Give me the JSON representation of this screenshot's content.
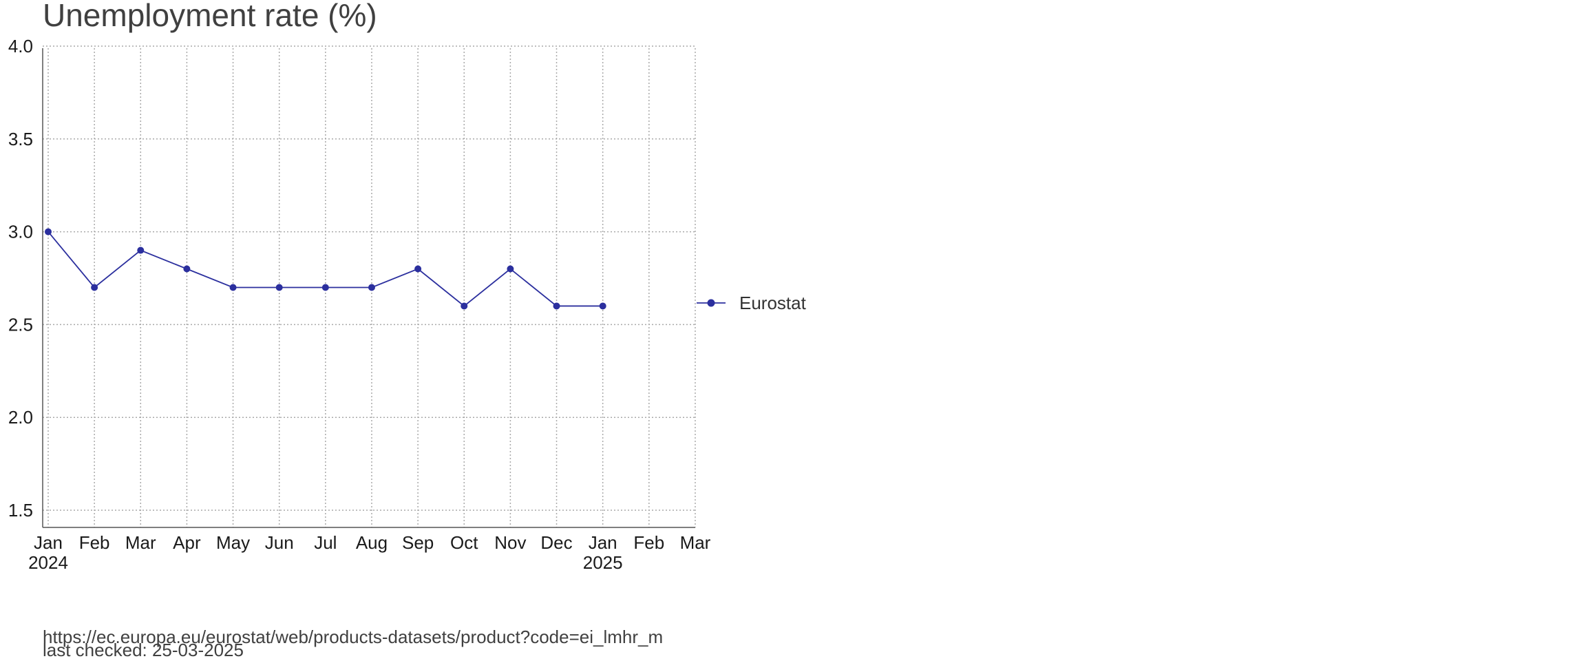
{
  "chart_data": {
    "type": "line",
    "title": "Unemployment rate (%)",
    "xlabel": "",
    "ylabel": "",
    "x": [
      "2024-01",
      "2024-02",
      "2024-03",
      "2024-04",
      "2024-05",
      "2024-06",
      "2024-07",
      "2024-08",
      "2024-09",
      "2024-10",
      "2024-11",
      "2024-12",
      "2025-01"
    ],
    "series": [
      {
        "name": "Eurostat",
        "color": "#2b2f9e",
        "values": [
          3.0,
          2.7,
          2.9,
          2.8,
          2.7,
          2.7,
          2.7,
          2.7,
          2.8,
          2.6,
          2.8,
          2.6,
          2.6
        ]
      }
    ],
    "xlim": [
      "2024-01",
      "2025-03"
    ],
    "ylim": [
      1.4,
      4.1
    ],
    "x_ticks": [
      {
        "month": "Jan",
        "year": "2024"
      },
      {
        "month": "Feb",
        "year": ""
      },
      {
        "month": "Mar",
        "year": ""
      },
      {
        "month": "Apr",
        "year": ""
      },
      {
        "month": "May",
        "year": ""
      },
      {
        "month": "Jun",
        "year": ""
      },
      {
        "month": "Jul",
        "year": ""
      },
      {
        "month": "Aug",
        "year": ""
      },
      {
        "month": "Sep",
        "year": ""
      },
      {
        "month": "Oct",
        "year": ""
      },
      {
        "month": "Nov",
        "year": ""
      },
      {
        "month": "Dec",
        "year": ""
      },
      {
        "month": "Jan",
        "year": "2025"
      },
      {
        "month": "Feb",
        "year": ""
      },
      {
        "month": "Mar",
        "year": ""
      }
    ],
    "y_ticks": [
      "1.5",
      "2.0",
      "2.5",
      "3.0",
      "3.5",
      "4.0"
    ],
    "grid": true,
    "legend_position": "right"
  },
  "source": {
    "url": "https://ec.europa.eu/eurostat/web/products-datasets/product?code=ei_lmhr_m",
    "last_checked": "last checked: 25-03-2025"
  }
}
